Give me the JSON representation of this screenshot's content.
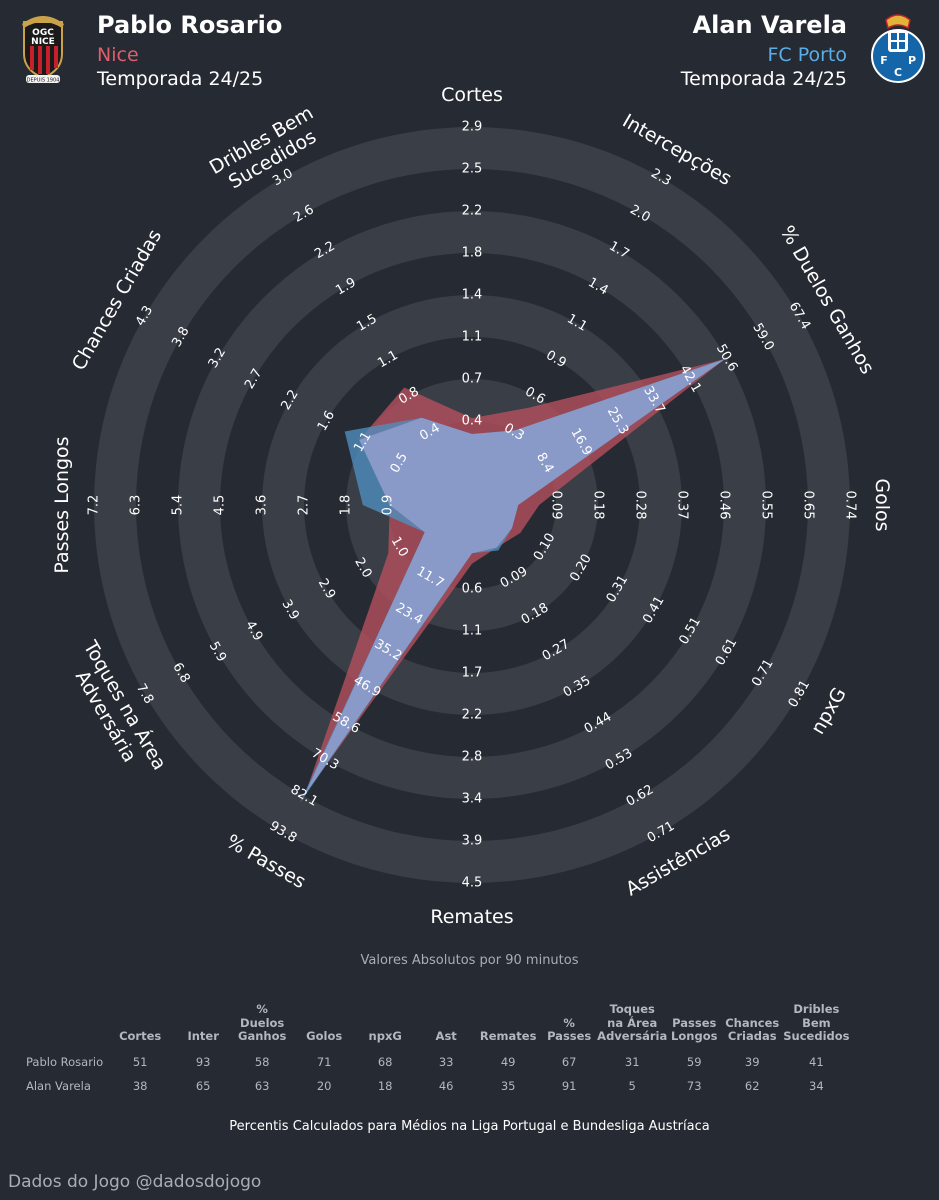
{
  "players": {
    "left": {
      "name": "Pablo Rosario",
      "club": "Nice",
      "season": "Temporada 24/25",
      "color": "#e05d6b",
      "crest_text": [
        "OGC",
        "NICE",
        "DEPUIS 1904"
      ]
    },
    "right": {
      "name": "Alan Varela",
      "club": "FC Porto",
      "season": "Temporada 24/25",
      "color": "#5aaee8",
      "crest_text": [
        "F",
        "C",
        "P"
      ]
    }
  },
  "colors": {
    "background": "#262a33",
    "ring_light": "#3a3e46",
    "ring_dark": "#262a33",
    "center": "#3a3e46",
    "left_fill": "#b8515e",
    "right_fill": "#4f8fc0"
  },
  "chart_data": {
    "type": "radar",
    "subtitle": "Valores Absolutos por 90 minutos",
    "axes": [
      {
        "label": "Cortes",
        "ticks": [
          "0.4",
          "0.7",
          "1.1",
          "1.4",
          "1.8",
          "2.2",
          "2.5",
          "2.9"
        ]
      },
      {
        "label": "Intercepções",
        "ticks": [
          "0.3",
          "0.6",
          "0.9",
          "1.1",
          "1.4",
          "1.7",
          "2.0",
          "2.3"
        ]
      },
      {
        "label": "% Duelos Ganhos",
        "ticks": [
          "8.4",
          "16.9",
          "25.3",
          "33.7",
          "42.1",
          "50.6",
          "59.0",
          "67.4"
        ]
      },
      {
        "label": "Golos",
        "ticks": [
          "0.09",
          "0.18",
          "0.28",
          "0.37",
          "0.46",
          "0.55",
          "0.65",
          "0.74"
        ]
      },
      {
        "label": "npxG",
        "ticks": [
          "0.10",
          "0.20",
          "0.31",
          "0.41",
          "0.51",
          "0.61",
          "0.71",
          "0.81"
        ]
      },
      {
        "label": "Assistências",
        "ticks": [
          "0.09",
          "0.18",
          "0.27",
          "0.35",
          "0.44",
          "0.53",
          "0.62",
          "0.71"
        ]
      },
      {
        "label": "Remates",
        "ticks": [
          "0.6",
          "1.1",
          "1.7",
          "2.2",
          "2.8",
          "3.4",
          "3.9",
          "4.5"
        ]
      },
      {
        "label": "% Passes",
        "ticks": [
          "11.7",
          "23.4",
          "35.2",
          "46.9",
          "58.6",
          "70.3",
          "82.1",
          "93.8"
        ]
      },
      {
        "label": "Toques na Área\nAdversária",
        "ticks": [
          "1.0",
          "2.0",
          "2.9",
          "3.9",
          "4.9",
          "5.9",
          "6.8",
          "7.8"
        ]
      },
      {
        "label": "Passes Longos",
        "ticks": [
          "0.9",
          "1.8",
          "2.7",
          "3.6",
          "4.5",
          "5.4",
          "6.3",
          "7.2"
        ]
      },
      {
        "label": "Chances Criadas",
        "ticks": [
          "0.5",
          "1.1",
          "1.6",
          "2.2",
          "2.7",
          "3.2",
          "3.8",
          "4.3"
        ]
      },
      {
        "label": "Dribles Bem\nSucedidos",
        "ticks": [
          "0.4",
          "0.8",
          "1.1",
          "1.5",
          "1.9",
          "2.2",
          "2.6",
          "3.0"
        ]
      }
    ],
    "scale_max": 8,
    "series": [
      {
        "name": "Pablo Rosario",
        "values": [
          1.07,
          1.67,
          5.95,
          0.6,
          0.33,
          0.17,
          0.4,
          6.95,
          1.3,
          0.96,
          2.1,
          2.23
        ]
      },
      {
        "name": "Alan Varela",
        "values": [
          0.69,
          1.05,
          5.99,
          0.1,
          0.1,
          0.25,
          0.15,
          7.2,
          0.3,
          1.6,
          2.5,
          1.4
        ]
      }
    ]
  },
  "table": {
    "columns": [
      "Cortes",
      "Inter",
      "%\nDuelos\nGanhos",
      "Golos",
      "npxG",
      "Ast",
      "Remates",
      "%\nPasses",
      "Toques\nna Área\nAdversária",
      "Passes\nLongos",
      "Chances\nCriadas",
      "Dribles\nBem\nSucedidos"
    ],
    "rows": [
      {
        "name": "Pablo Rosario",
        "values": [
          "51",
          "93",
          "58",
          "71",
          "68",
          "33",
          "49",
          "67",
          "31",
          "59",
          "39",
          "41"
        ]
      },
      {
        "name": "Alan Varela",
        "values": [
          "38",
          "65",
          "63",
          "20",
          "18",
          "46",
          "35",
          "91",
          "5",
          "73",
          "62",
          "34"
        ]
      }
    ]
  },
  "footnote": "Percentis Calculados para Médios na Liga Portugal e Bundesliga Austríaca",
  "credit": "Dados do Jogo @dadosdojogo"
}
